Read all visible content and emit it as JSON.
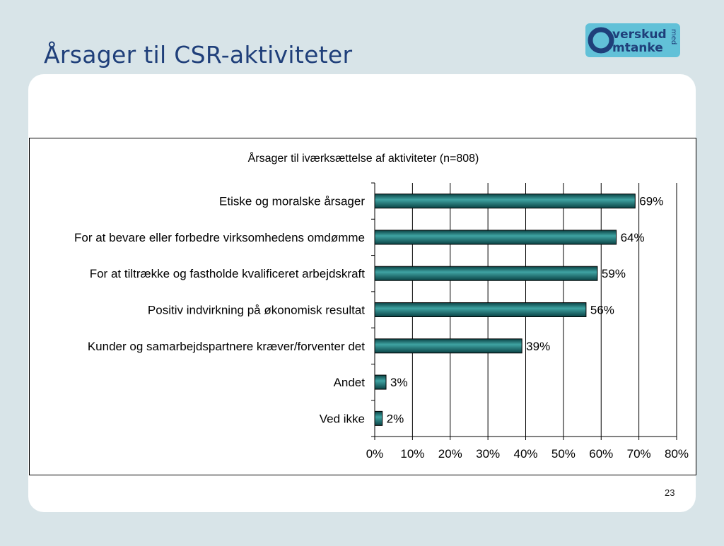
{
  "slide": {
    "title": "Årsager til CSR-aktiviteter",
    "page_number": "23"
  },
  "logo": {
    "line1": "verskud",
    "line2": "mtanke",
    "vertical": "med",
    "colors": {
      "background": "#62c1d8",
      "text": "#1f3f7a"
    }
  },
  "chart_data": {
    "type": "bar",
    "orientation": "horizontal",
    "title": "Årsager til iværksættelse af aktiviteter (n=808)",
    "categories": [
      "Etiske og moralske årsager",
      "For at bevare eller forbedre virksomhedens omdømme",
      "For at tiltrække og fastholde kvalificeret arbejdskraft",
      "Positiv indvirkning på økonomisk resultat",
      "Kunder og samarbejdspartnere kræver/forventer det",
      "Andet",
      "Ved ikke"
    ],
    "values": [
      69,
      64,
      59,
      56,
      39,
      3,
      2
    ],
    "value_labels": [
      "69%",
      "64%",
      "59%",
      "56%",
      "39%",
      "3%",
      "2%"
    ],
    "xlim": [
      0,
      80
    ],
    "x_ticks": [
      "0%",
      "10%",
      "20%",
      "30%",
      "40%",
      "50%",
      "60%",
      "70%",
      "80%"
    ],
    "grid": true,
    "legend": "none",
    "colors": {
      "bar": "#1f7f80",
      "bar_light": "#3fa3a2",
      "bar_dark": "#0a4244"
    }
  }
}
